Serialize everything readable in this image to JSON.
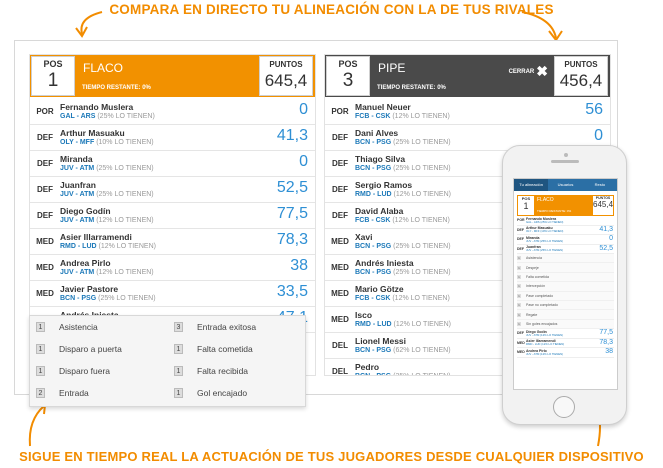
{
  "captions": {
    "top": "COMPARA EN DIRECTO TU ALINEACIÓN CON LA DE TUS RIVALES",
    "bottom": "SIGUE EN TIEMPO REAL LA ACTUACIÓN DE TUS JUGADORES DESDE CUALQUIER DISPOSITIVO"
  },
  "labels": {
    "pos": "POS",
    "points": "PUNTOS",
    "time_remaining": "TIEMPO RESTANTE: 0%",
    "close": "CERRAR"
  },
  "colors": {
    "accent": "#f29100",
    "dark_header": "#4a4a4a",
    "points_blue": "#2e8fd4",
    "team_blue": "#1b78b8"
  },
  "left": {
    "pos": "1",
    "name": "FLACO",
    "points": "645,4",
    "players": [
      {
        "pos": "POR",
        "name": "Fernando Muslera",
        "teams": "GAL - ARS",
        "own": "(25% LO TIENEN)",
        "points": "0"
      },
      {
        "pos": "DEF",
        "name": "Arthur Masuaku",
        "teams": "OLY - MFF",
        "own": "(10% LO TIENEN)",
        "points": "41,3"
      },
      {
        "pos": "DEF",
        "name": "Miranda",
        "teams": "JUV - ATM",
        "own": "(25% LO TIENEN)",
        "points": "0"
      },
      {
        "pos": "DEF",
        "name": "Juanfran",
        "teams": "JUV - ATM",
        "own": "(25% LO TIENEN)",
        "points": "52,5"
      },
      {
        "pos": "DEF",
        "name": "Diego Godín",
        "teams": "JUV - ATM",
        "own": "(12% LO TIENEN)",
        "points": "77,5"
      },
      {
        "pos": "MED",
        "name": "Asier Illarramendi",
        "teams": "RMD - LUD",
        "own": "(12% LO TIENEN)",
        "points": "78,3"
      },
      {
        "pos": "MED",
        "name": "Andrea Pirlo",
        "teams": "JUV - ATM",
        "own": "(12% LO TIENEN)",
        "points": "38"
      },
      {
        "pos": "MED",
        "name": "Javier Pastore",
        "teams": "BCN - PSG",
        "own": "(25% LO TIENEN)",
        "points": "33,5"
      },
      {
        "pos": "MED",
        "name": "Andrés Iniesta",
        "teams": "BCN - PSG",
        "own": "(25% LO TIENEN)",
        "points": "47,1"
      }
    ]
  },
  "right": {
    "pos": "3",
    "name": "PIPE",
    "points": "456,4",
    "players": [
      {
        "pos": "POR",
        "name": "Manuel Neuer",
        "teams": "FCB - CSK",
        "own": "(12% LO TIENEN)",
        "points": "56"
      },
      {
        "pos": "DEF",
        "name": "Dani Alves",
        "teams": "BCN - PSG",
        "own": "(25% LO TIENEN)",
        "points": "0"
      },
      {
        "pos": "DEF",
        "name": "Thiago Silva",
        "teams": "BCN - PSG",
        "own": "(25% LO TIENEN)",
        "points": "0"
      },
      {
        "pos": "DEF",
        "name": "Sergio Ramos",
        "teams": "RMD - LUD",
        "own": "(12% LO TIENEN)",
        "points": ""
      },
      {
        "pos": "DEF",
        "name": "David Alaba",
        "teams": "FCB - CSK",
        "own": "(12% LO TIENEN)",
        "points": ""
      },
      {
        "pos": "MED",
        "name": "Xavi",
        "teams": "BCN - PSG",
        "own": "(25% LO TIENEN)",
        "points": ""
      },
      {
        "pos": "MED",
        "name": "Andrés Iniesta",
        "teams": "BCN - PSG",
        "own": "(25% LO TIENEN)",
        "points": ""
      },
      {
        "pos": "MED",
        "name": "Mario Götze",
        "teams": "FCB - CSK",
        "own": "(12% LO TIENEN)",
        "points": ""
      },
      {
        "pos": "MED",
        "name": "Isco",
        "teams": "RMD - LUD",
        "own": "(12% LO TIENEN)",
        "points": ""
      },
      {
        "pos": "DEL",
        "name": "Lionel Messi",
        "teams": "BCN - PSG",
        "own": "(62% LO TIENEN)",
        "points": ""
      },
      {
        "pos": "DEL",
        "name": "Pedro",
        "teams": "BCN - PSG",
        "own": "(25% LO TIENEN)",
        "points": ""
      }
    ]
  },
  "legend": [
    {
      "num": "1",
      "label": "Asistencia"
    },
    {
      "num": "3",
      "label": "Entrada exitosa"
    },
    {
      "num": "1",
      "label": "Disparo a puerta"
    },
    {
      "num": "1",
      "label": "Falta cometida"
    },
    {
      "num": "1",
      "label": "Disparo fuera"
    },
    {
      "num": "1",
      "label": "Falta recibida"
    },
    {
      "num": "2",
      "label": "Entrada"
    },
    {
      "num": "1",
      "label": "Gol encajado"
    }
  ],
  "phone": {
    "tabs": [
      "Tu alineación",
      "Usuarios",
      "Resto"
    ],
    "players": [
      {
        "pos": "POR",
        "name": "Fernando Muslera",
        "teams": "GAL - ARS (25% LO TIENEN)",
        "points": ""
      },
      {
        "pos": "DEF",
        "name": "Arthur Masuaku",
        "teams": "OLY - MFF (10% LO TIENEN)",
        "points": "41,3"
      },
      {
        "pos": "DEF",
        "name": "Miranda",
        "teams": "JUV - ATM (25% LO TIENEN)",
        "points": "0"
      },
      {
        "pos": "DEF",
        "name": "Juanfran",
        "teams": "JUV - ATM (25% LO TIENEN)",
        "points": "52,5"
      }
    ],
    "legend": [
      {
        "num": "1",
        "label": "Asistencia"
      },
      {
        "num": "1",
        "label": "Despeje"
      },
      {
        "num": "1",
        "label": "Falta cometida"
      },
      {
        "num": "1",
        "label": "Intercepción"
      },
      {
        "num": "1",
        "label": "Pase completado"
      },
      {
        "num": "1",
        "label": "Pase no completado"
      },
      {
        "num": "1",
        "label": "Regate"
      },
      {
        "num": "1",
        "label": "Sin goles encajados"
      }
    ],
    "players_bottom": [
      {
        "pos": "DEF",
        "name": "Diego Godín",
        "teams": "JUV - ATM (12% LO TIENEN)",
        "points": "77,5"
      },
      {
        "pos": "MED",
        "name": "Asier Illarramendi",
        "teams": "RMD - LUD (12% LO TIENEN)",
        "points": "78,3"
      },
      {
        "pos": "MED",
        "name": "Andrea Pirlo",
        "teams": "JUV - ATM (12% LO TIENEN)",
        "points": "38"
      }
    ]
  }
}
